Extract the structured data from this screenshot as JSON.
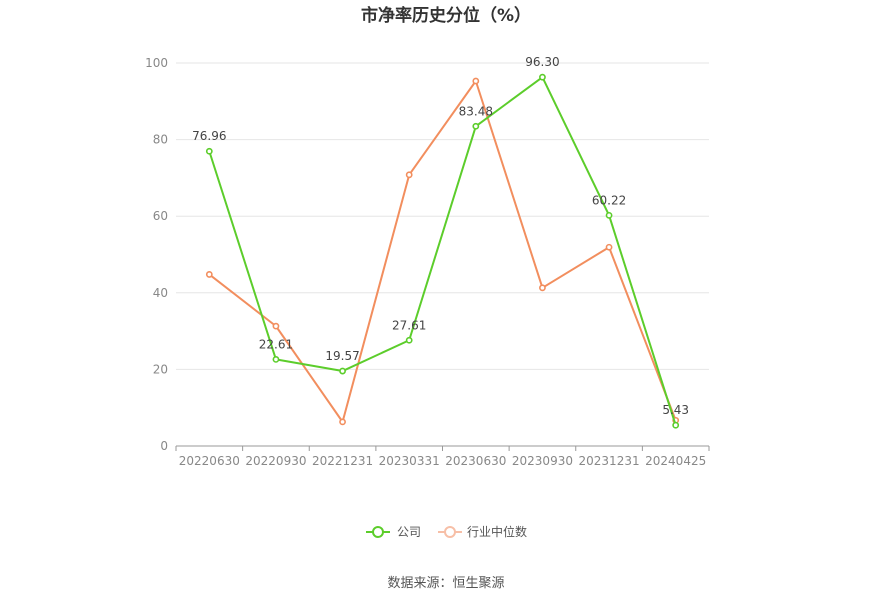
{
  "chart_data": {
    "type": "line",
    "title": "市净率历史分位（%）",
    "categories": [
      "20220630",
      "20220930",
      "20221231",
      "20230331",
      "20230630",
      "20230930",
      "20231231",
      "20240425"
    ],
    "ylim": [
      0,
      100
    ],
    "yticks": [
      0,
      20,
      40,
      60,
      80,
      100
    ],
    "grid": true,
    "legend_position": "bottom-center",
    "series": [
      {
        "name": "公司",
        "color": "#5ccd2b",
        "values": [
          76.96,
          22.61,
          19.57,
          27.61,
          83.48,
          96.3,
          60.22,
          5.43
        ],
        "labels": [
          "76.96",
          "22.61",
          "19.57",
          "27.61",
          "83.48",
          "96.30",
          "60.22",
          "5.43"
        ]
      },
      {
        "name": "行业中位数",
        "color": "#f28e5e",
        "values": [
          44.8,
          31.3,
          6.3,
          70.8,
          95.3,
          41.3,
          51.9,
          6.7
        ]
      }
    ],
    "source": "数据来源：恒生聚源"
  }
}
